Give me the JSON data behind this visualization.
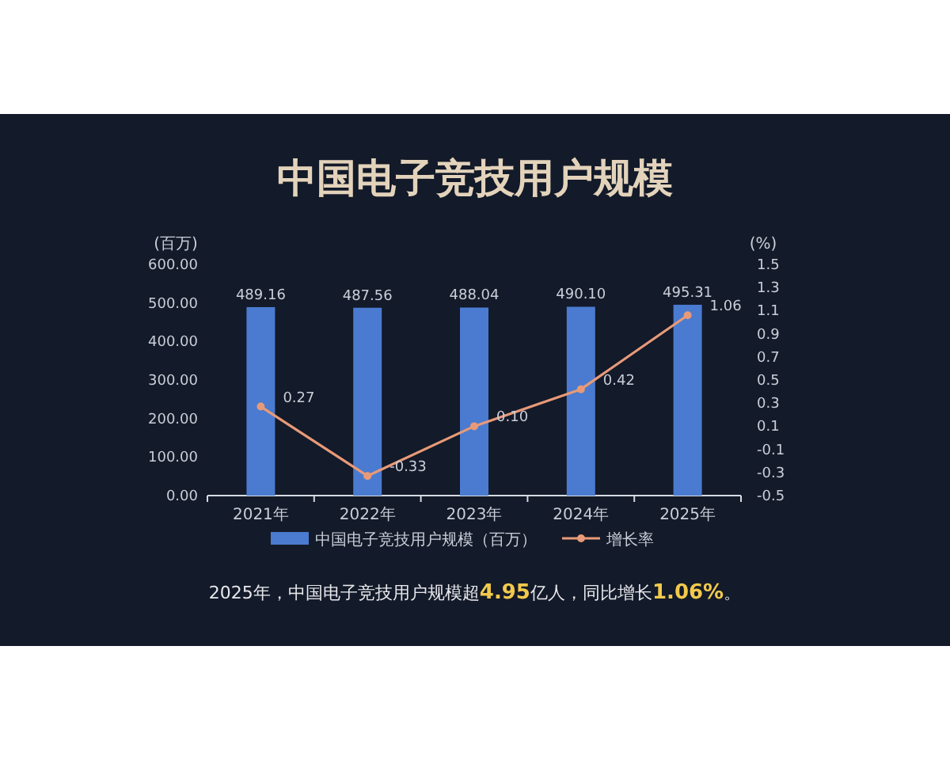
{
  "chart_data": {
    "type": "bar",
    "title": "中国电子竞技用户规模",
    "ylabel": "(百万)",
    "y2label": "(%)",
    "categories": [
      "2021年",
      "2022年",
      "2023年",
      "2024年",
      "2025年"
    ],
    "series": [
      {
        "name": "中国电子竞技用户规模（百万）",
        "color": "#4a7bd0",
        "values": [
          489.16,
          487.56,
          488.04,
          490.1,
          495.31
        ],
        "value_labels": [
          "489.16",
          "487.56",
          "488.04",
          "490.10",
          "495.31"
        ]
      },
      {
        "name": "增长率",
        "type": "line",
        "axis": "y2",
        "color": "#e89a78",
        "values": [
          0.27,
          -0.33,
          0.1,
          0.42,
          1.06
        ],
        "value_labels": [
          "0.27",
          "-0.33",
          "0.10",
          "0.42",
          "1.06"
        ]
      }
    ],
    "ylim": [
      0,
      600
    ],
    "yticks": [
      {
        "value": 0,
        "label": "0.00"
      },
      {
        "value": 100,
        "label": "100.00"
      },
      {
        "value": 200,
        "label": "200.00"
      },
      {
        "value": 300,
        "label": "300.00"
      },
      {
        "value": 400,
        "label": "400.00"
      },
      {
        "value": 500,
        "label": "500.00"
      },
      {
        "value": 600,
        "label": "600.00"
      }
    ],
    "y2lim": [
      -0.5,
      1.5
    ],
    "y2ticks": [
      -0.5,
      -0.3,
      -0.1,
      0.1,
      0.3,
      0.5,
      0.7,
      0.9,
      1.1,
      1.3,
      1.5
    ],
    "legend": "bottom",
    "marker": "circle",
    "annotations": [
      "2025年，中国电子竞技用户规模超4.95亿人，同比增长1.06%。"
    ]
  }
}
